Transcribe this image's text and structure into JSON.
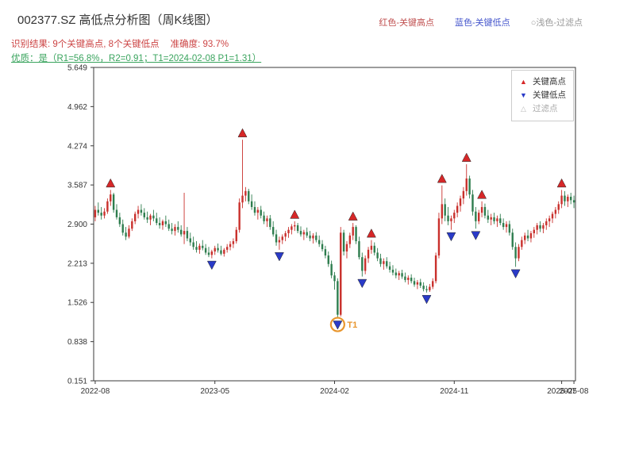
{
  "header": {
    "title": "002377.SZ 高低点分析图（周K线图）",
    "title_color": "#333333",
    "result_label": "识别结果: 9个关键高点, 8个关键低点",
    "accuracy_label": "准确度: 93.7%",
    "result_color": "#cc4444",
    "quality_label": "优质：是（R1=56.8%，R2=0.91；T1=2024-02-08 P1=1.31）",
    "quality_color": "#3aa45e",
    "top_legend": [
      {
        "label": "红色-关键高点",
        "color": "#c05050"
      },
      {
        "label": "蓝色-关键低点",
        "color": "#4455cc"
      },
      {
        "label": "○浅色-过滤点",
        "color": "#999999"
      }
    ]
  },
  "legend_box": {
    "items": [
      {
        "symbol": "▲",
        "label": "关键高点",
        "symbol_color": "#d62728",
        "text_color": "#333333"
      },
      {
        "symbol": "▼",
        "label": "关键低点",
        "symbol_color": "#2a3bc8",
        "text_color": "#333333"
      },
      {
        "symbol": "△",
        "label": "过滤点",
        "symbol_color": "#bbbbbb",
        "text_color": "#aaaaaa"
      }
    ]
  },
  "chart_data": {
    "type": "candlestick",
    "interval": "weekly",
    "symbol": "002377.SZ",
    "title": "002377.SZ 高低点分析图（周K线图）",
    "xlabel": "",
    "ylabel": "",
    "grid": false,
    "ylim": [
      0.151,
      5.649
    ],
    "y_ticks": [
      "0.151",
      "0.838",
      "1.526",
      "2.213",
      "2.900",
      "3.587",
      "4.274",
      "4.962",
      "5.649"
    ],
    "x_tick_labels": [
      {
        "week": 0,
        "label": "2022-08"
      },
      {
        "week": 39,
        "label": "2023-05"
      },
      {
        "week": 78,
        "label": "2024-02"
      },
      {
        "week": 117,
        "label": "2024-11"
      },
      {
        "week": 152,
        "label": "2025-07"
      },
      {
        "week": 156,
        "label": "2025-08"
      }
    ],
    "candles_ohlc": [
      [
        3.02,
        3.22,
        2.95,
        3.15
      ],
      [
        3.15,
        3.28,
        3.05,
        3.1
      ],
      [
        3.1,
        3.2,
        2.98,
        3.05
      ],
      [
        3.05,
        3.18,
        3.0,
        3.12
      ],
      [
        3.12,
        3.35,
        3.08,
        3.3
      ],
      [
        3.3,
        3.5,
        3.22,
        3.42
      ],
      [
        3.42,
        3.45,
        3.1,
        3.15
      ],
      [
        3.15,
        3.25,
        2.98,
        3.02
      ],
      [
        3.02,
        3.1,
        2.85,
        2.9
      ],
      [
        2.9,
        2.98,
        2.7,
        2.75
      ],
      [
        2.75,
        2.85,
        2.62,
        2.68
      ],
      [
        2.68,
        2.88,
        2.65,
        2.82
      ],
      [
        2.82,
        3.0,
        2.78,
        2.95
      ],
      [
        2.95,
        3.12,
        2.9,
        3.08
      ],
      [
        3.08,
        3.22,
        3.0,
        3.15
      ],
      [
        3.15,
        3.25,
        3.05,
        3.1
      ],
      [
        3.1,
        3.18,
        2.98,
        3.02
      ],
      [
        3.02,
        3.12,
        2.92,
        2.98
      ],
      [
        2.98,
        3.08,
        2.88,
        3.05
      ],
      [
        3.05,
        3.15,
        2.95,
        3.0
      ],
      [
        3.0,
        3.1,
        2.88,
        2.92
      ],
      [
        2.92,
        3.02,
        2.82,
        2.88
      ],
      [
        2.88,
        2.98,
        2.8,
        2.95
      ],
      [
        2.95,
        3.05,
        2.85,
        2.9
      ],
      [
        2.9,
        2.98,
        2.78,
        2.82
      ],
      [
        2.82,
        2.92,
        2.72,
        2.78
      ],
      [
        2.78,
        2.9,
        2.7,
        2.85
      ],
      [
        2.85,
        2.95,
        2.75,
        2.8
      ],
      [
        2.8,
        2.88,
        2.68,
        2.72
      ],
      [
        2.72,
        3.45,
        2.55,
        2.78
      ],
      [
        2.78,
        2.85,
        2.6,
        2.65
      ],
      [
        2.65,
        2.75,
        2.52,
        2.58
      ],
      [
        2.58,
        2.68,
        2.45,
        2.5
      ],
      [
        2.5,
        2.6,
        2.4,
        2.45
      ],
      [
        2.45,
        2.56,
        2.38,
        2.52
      ],
      [
        2.52,
        2.62,
        2.44,
        2.48
      ],
      [
        2.48,
        2.55,
        2.36,
        2.4
      ],
      [
        2.4,
        2.5,
        2.32,
        2.36
      ],
      [
        2.36,
        2.45,
        2.3,
        2.42
      ],
      [
        2.42,
        2.52,
        2.36,
        2.48
      ],
      [
        2.48,
        2.56,
        2.4,
        2.44
      ],
      [
        2.44,
        2.52,
        2.35,
        2.38
      ],
      [
        2.38,
        2.48,
        2.33,
        2.45
      ],
      [
        2.45,
        2.55,
        2.4,
        2.5
      ],
      [
        2.5,
        2.6,
        2.44,
        2.55
      ],
      [
        2.55,
        2.65,
        2.48,
        2.6
      ],
      [
        2.6,
        2.85,
        2.56,
        2.8
      ],
      [
        2.8,
        3.35,
        2.75,
        3.28
      ],
      [
        3.28,
        4.38,
        3.18,
        3.4
      ],
      [
        3.4,
        3.55,
        3.3,
        3.48
      ],
      [
        3.48,
        3.52,
        3.25,
        3.3
      ],
      [
        3.3,
        3.42,
        3.15,
        3.2
      ],
      [
        3.2,
        3.3,
        3.05,
        3.1
      ],
      [
        3.1,
        3.2,
        2.98,
        3.15
      ],
      [
        3.15,
        3.22,
        3.0,
        3.05
      ],
      [
        3.05,
        3.12,
        2.9,
        2.95
      ],
      [
        2.95,
        3.05,
        2.85,
        3.0
      ],
      [
        3.0,
        3.06,
        2.8,
        2.85
      ],
      [
        2.85,
        2.95,
        2.68,
        2.72
      ],
      [
        2.72,
        2.8,
        2.52,
        2.58
      ],
      [
        2.58,
        2.68,
        2.45,
        2.62
      ],
      [
        2.62,
        2.72,
        2.55,
        2.68
      ],
      [
        2.68,
        2.78,
        2.6,
        2.74
      ],
      [
        2.74,
        2.85,
        2.66,
        2.8
      ],
      [
        2.8,
        2.9,
        2.72,
        2.86
      ],
      [
        2.86,
        2.95,
        2.78,
        2.88
      ],
      [
        2.88,
        2.92,
        2.74,
        2.78
      ],
      [
        2.78,
        2.86,
        2.68,
        2.72
      ],
      [
        2.72,
        2.8,
        2.62,
        2.76
      ],
      [
        2.76,
        2.84,
        2.66,
        2.7
      ],
      [
        2.7,
        2.78,
        2.6,
        2.65
      ],
      [
        2.65,
        2.74,
        2.56,
        2.7
      ],
      [
        2.7,
        2.76,
        2.58,
        2.62
      ],
      [
        2.62,
        2.7,
        2.5,
        2.55
      ],
      [
        2.55,
        2.62,
        2.42,
        2.46
      ],
      [
        2.46,
        2.52,
        2.3,
        2.35
      ],
      [
        2.35,
        2.42,
        2.15,
        2.2
      ],
      [
        2.2,
        2.26,
        1.95,
        2.0
      ],
      [
        2.0,
        2.06,
        1.75,
        1.9
      ],
      [
        1.9,
        1.95,
        1.25,
        1.31
      ],
      [
        1.31,
        2.85,
        1.28,
        2.75
      ],
      [
        2.75,
        2.8,
        2.35,
        2.42
      ],
      [
        2.42,
        2.6,
        2.3,
        2.55
      ],
      [
        2.55,
        2.75,
        2.48,
        2.7
      ],
      [
        2.7,
        2.92,
        2.62,
        2.85
      ],
      [
        2.85,
        2.88,
        2.55,
        2.6
      ],
      [
        2.6,
        2.68,
        2.28,
        2.32
      ],
      [
        2.32,
        2.4,
        1.98,
        2.08
      ],
      [
        2.08,
        2.35,
        2.02,
        2.3
      ],
      [
        2.3,
        2.5,
        2.22,
        2.45
      ],
      [
        2.45,
        2.62,
        2.38,
        2.52
      ],
      [
        2.52,
        2.58,
        2.35,
        2.4
      ],
      [
        2.4,
        2.48,
        2.25,
        2.3
      ],
      [
        2.3,
        2.38,
        2.15,
        2.2
      ],
      [
        2.2,
        2.3,
        2.1,
        2.25
      ],
      [
        2.25,
        2.32,
        2.12,
        2.16
      ],
      [
        2.16,
        2.24,
        2.05,
        2.1
      ],
      [
        2.1,
        2.18,
        2.0,
        2.05
      ],
      [
        2.05,
        2.12,
        1.95,
        2.0
      ],
      [
        2.0,
        2.08,
        1.92,
        2.04
      ],
      [
        2.04,
        2.1,
        1.94,
        1.98
      ],
      [
        1.98,
        2.05,
        1.88,
        1.92
      ],
      [
        1.92,
        2.0,
        1.84,
        1.96
      ],
      [
        1.96,
        2.02,
        1.86,
        1.9
      ],
      [
        1.9,
        1.96,
        1.8,
        1.84
      ],
      [
        1.84,
        1.92,
        1.76,
        1.88
      ],
      [
        1.88,
        1.94,
        1.78,
        1.82
      ],
      [
        1.82,
        1.88,
        1.72,
        1.76
      ],
      [
        1.76,
        1.82,
        1.7,
        1.74
      ],
      [
        1.74,
        1.85,
        1.71,
        1.8
      ],
      [
        1.8,
        1.95,
        1.76,
        1.9
      ],
      [
        1.9,
        2.4,
        1.86,
        2.35
      ],
      [
        2.35,
        3.1,
        2.3,
        3.0
      ],
      [
        3.0,
        3.58,
        2.9,
        3.25
      ],
      [
        3.25,
        3.35,
        2.95,
        3.05
      ],
      [
        3.05,
        3.2,
        2.88,
        2.95
      ],
      [
        2.95,
        3.05,
        2.8,
        3.0
      ],
      [
        3.0,
        3.15,
        2.92,
        3.1
      ],
      [
        3.1,
        3.28,
        3.02,
        3.22
      ],
      [
        3.22,
        3.4,
        3.12,
        3.35
      ],
      [
        3.35,
        3.55,
        3.25,
        3.48
      ],
      [
        3.48,
        3.95,
        3.4,
        3.7
      ],
      [
        3.7,
        3.75,
        3.35,
        3.42
      ],
      [
        3.42,
        3.5,
        3.05,
        3.12
      ],
      [
        3.12,
        3.2,
        2.82,
        2.95
      ],
      [
        2.95,
        3.15,
        2.9,
        3.1
      ],
      [
        3.1,
        3.3,
        3.02,
        3.2
      ],
      [
        3.2,
        3.26,
        3.0,
        3.05
      ],
      [
        3.05,
        3.15,
        2.92,
        2.98
      ],
      [
        2.98,
        3.08,
        2.88,
        3.02
      ],
      [
        3.02,
        3.1,
        2.9,
        2.95
      ],
      [
        2.95,
        3.05,
        2.85,
        3.0
      ],
      [
        3.0,
        3.08,
        2.88,
        2.92
      ],
      [
        2.92,
        3.0,
        2.8,
        2.85
      ],
      [
        2.85,
        2.95,
        2.75,
        2.9
      ],
      [
        2.9,
        2.96,
        2.7,
        2.75
      ],
      [
        2.75,
        2.82,
        2.45,
        2.5
      ],
      [
        2.5,
        2.58,
        2.15,
        2.3
      ],
      [
        2.3,
        2.55,
        2.25,
        2.5
      ],
      [
        2.5,
        2.68,
        2.45,
        2.62
      ],
      [
        2.62,
        2.75,
        2.55,
        2.7
      ],
      [
        2.7,
        2.8,
        2.6,
        2.65
      ],
      [
        2.65,
        2.78,
        2.58,
        2.74
      ],
      [
        2.74,
        2.85,
        2.66,
        2.8
      ],
      [
        2.8,
        2.92,
        2.72,
        2.88
      ],
      [
        2.88,
        2.95,
        2.76,
        2.82
      ],
      [
        2.82,
        2.92,
        2.74,
        2.88
      ],
      [
        2.88,
        3.0,
        2.8,
        2.95
      ],
      [
        2.95,
        3.05,
        2.85,
        3.0
      ],
      [
        3.0,
        3.12,
        2.92,
        3.08
      ],
      [
        3.08,
        3.2,
        3.0,
        3.15
      ],
      [
        3.15,
        3.3,
        3.08,
        3.25
      ],
      [
        3.25,
        3.5,
        3.18,
        3.4
      ],
      [
        3.4,
        3.48,
        3.22,
        3.3
      ],
      [
        3.3,
        3.42,
        3.2,
        3.38
      ],
      [
        3.38,
        3.45,
        3.25,
        3.32
      ],
      [
        3.32,
        3.4,
        3.18,
        3.28
      ]
    ],
    "key_highs": [
      {
        "week": 5,
        "price": 3.5
      },
      {
        "week": 48,
        "price": 4.38
      },
      {
        "week": 65,
        "price": 2.95
      },
      {
        "week": 84,
        "price": 2.92
      },
      {
        "week": 90,
        "price": 2.62
      },
      {
        "week": 113,
        "price": 3.58
      },
      {
        "week": 121,
        "price": 3.95
      },
      {
        "week": 126,
        "price": 3.3
      },
      {
        "week": 152,
        "price": 3.5
      }
    ],
    "key_lows": [
      {
        "week": 38,
        "price": 2.3
      },
      {
        "week": 60,
        "price": 2.45
      },
      {
        "week": 79,
        "price": 1.25
      },
      {
        "week": 87,
        "price": 1.98
      },
      {
        "week": 108,
        "price": 1.7
      },
      {
        "week": 116,
        "price": 2.8
      },
      {
        "week": 124,
        "price": 2.82
      },
      {
        "week": 137,
        "price": 2.15
      }
    ],
    "filtered_points": [],
    "t1_marker": {
      "week": 79,
      "price": 1.25,
      "label": "T1"
    },
    "colors": {
      "up": "#c9302c",
      "down": "#2e7d4e",
      "high_marker": "#d62728",
      "low_marker": "#2a3bc8",
      "t1": "#e8962e",
      "axis": "#3a3a3a"
    }
  }
}
